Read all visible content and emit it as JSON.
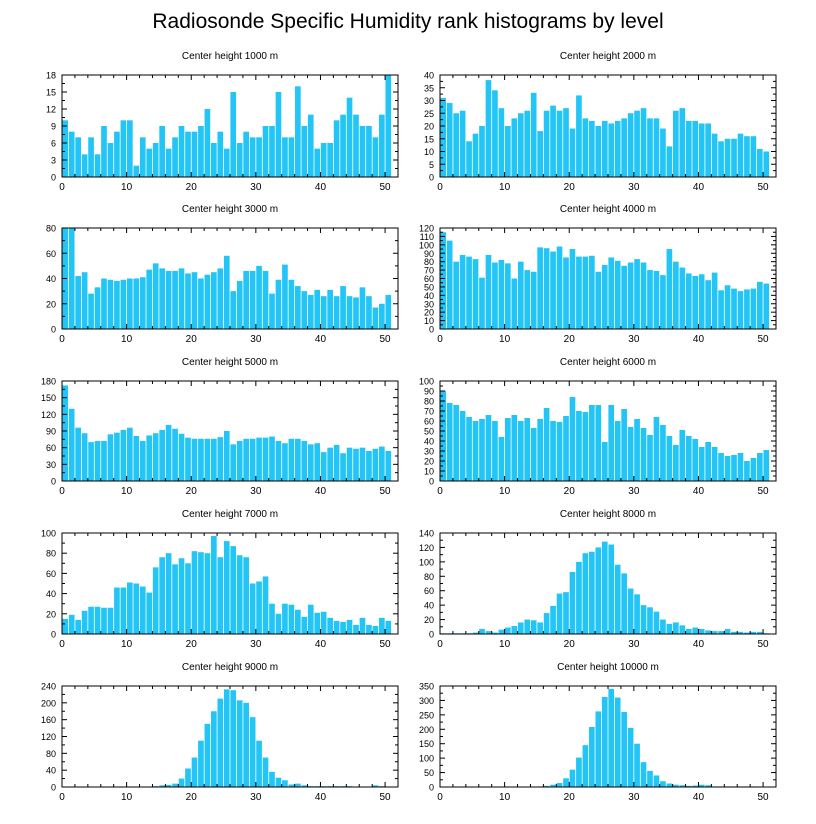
{
  "title": "Radiosonde Specific Humidity rank histograms by level",
  "colors": {
    "bar": "#22c5f5",
    "axis": "#000000"
  },
  "chart_data": [
    {
      "type": "bar",
      "title": "Center height 1000 m",
      "xlim": [
        0,
        52
      ],
      "xticks": [
        0,
        10,
        20,
        30,
        40,
        50
      ],
      "ylim": [
        0,
        18
      ],
      "yticks": [
        0,
        3,
        6,
        9,
        12,
        15,
        18
      ],
      "values": [
        10,
        8,
        7,
        4,
        7,
        4,
        9,
        6,
        8,
        10,
        10,
        2,
        7,
        5,
        6,
        9,
        5,
        7,
        9,
        8,
        8,
        9,
        12,
        6,
        8,
        5,
        15,
        6,
        8,
        7,
        7,
        9,
        9,
        15,
        7,
        7,
        16,
        9,
        11,
        5,
        6,
        6,
        10,
        11,
        14,
        11,
        9,
        9,
        7,
        11,
        18
      ]
    },
    {
      "type": "bar",
      "title": "Center height 2000 m",
      "xlim": [
        0,
        52
      ],
      "xticks": [
        0,
        10,
        20,
        30,
        40,
        50
      ],
      "ylim": [
        0,
        40
      ],
      "yticks": [
        0,
        5,
        10,
        15,
        20,
        25,
        30,
        35,
        40
      ],
      "values": [
        31,
        29,
        25,
        26,
        14,
        17,
        20,
        38,
        34,
        27,
        20,
        23,
        25,
        26,
        33,
        18,
        26,
        28,
        26,
        27,
        19,
        32,
        23,
        22,
        20,
        22,
        21,
        22,
        23,
        25,
        26,
        27,
        23,
        23,
        19,
        12,
        26,
        27,
        22,
        22,
        21,
        21,
        17,
        14,
        15,
        15,
        17,
        16,
        16,
        11,
        10
      ]
    },
    {
      "type": "bar",
      "title": "Center height 3000 m",
      "xlim": [
        0,
        52
      ],
      "xticks": [
        0,
        10,
        20,
        30,
        40,
        50
      ],
      "ylim": [
        0,
        80
      ],
      "yticks": [
        0,
        20,
        40,
        60,
        80
      ],
      "values": [
        80,
        80,
        42,
        45,
        28,
        33,
        40,
        39,
        38,
        39,
        40,
        40,
        41,
        47,
        52,
        48,
        46,
        46,
        48,
        44,
        45,
        40,
        43,
        45,
        48,
        58,
        30,
        38,
        46,
        46,
        50,
        46,
        28,
        39,
        51,
        39,
        34,
        30,
        27,
        31,
        26,
        31,
        26,
        34,
        26,
        25,
        33,
        26,
        17,
        20,
        27
      ]
    },
    {
      "type": "bar",
      "title": "Center height 4000 m",
      "xlim": [
        0,
        52
      ],
      "xticks": [
        0,
        10,
        20,
        30,
        40,
        50
      ],
      "ylim": [
        0,
        120
      ],
      "yticks": [
        0,
        10,
        20,
        30,
        40,
        50,
        60,
        70,
        80,
        90,
        100,
        110,
        120
      ],
      "values": [
        115,
        105,
        80,
        88,
        86,
        83,
        61,
        88,
        79,
        82,
        78,
        60,
        80,
        70,
        68,
        97,
        96,
        92,
        98,
        85,
        95,
        86,
        86,
        87,
        68,
        76,
        85,
        81,
        75,
        79,
        83,
        79,
        70,
        69,
        64,
        95,
        80,
        73,
        66,
        63,
        65,
        58,
        67,
        46,
        52,
        48,
        45,
        47,
        48,
        56,
        54
      ]
    },
    {
      "type": "bar",
      "title": "Center height 5000 m",
      "xlim": [
        0,
        52
      ],
      "xticks": [
        0,
        10,
        20,
        30,
        40,
        50
      ],
      "ylim": [
        0,
        180
      ],
      "yticks": [
        0,
        30,
        60,
        90,
        120,
        150,
        180
      ],
      "values": [
        172,
        130,
        96,
        86,
        70,
        72,
        72,
        84,
        87,
        92,
        96,
        81,
        72,
        82,
        86,
        92,
        101,
        94,
        85,
        78,
        76,
        76,
        76,
        76,
        79,
        90,
        66,
        72,
        76,
        76,
        78,
        78,
        80,
        72,
        68,
        76,
        76,
        72,
        66,
        68,
        52,
        60,
        65,
        50,
        60,
        58,
        60,
        54,
        58,
        62,
        54
      ]
    },
    {
      "type": "bar",
      "title": "Center height 6000 m",
      "xlim": [
        0,
        52
      ],
      "xticks": [
        0,
        10,
        20,
        30,
        40,
        50
      ],
      "ylim": [
        0,
        100
      ],
      "yticks": [
        0,
        10,
        20,
        30,
        40,
        50,
        60,
        70,
        80,
        90,
        100
      ],
      "values": [
        90,
        78,
        76,
        70,
        64,
        60,
        62,
        66,
        60,
        44,
        63,
        66,
        60,
        63,
        53,
        62,
        73,
        60,
        59,
        65,
        84,
        70,
        69,
        76,
        76,
        39,
        76,
        60,
        72,
        54,
        62,
        53,
        46,
        64,
        56,
        45,
        36,
        51,
        45,
        42,
        34,
        39,
        34,
        28,
        25,
        26,
        28,
        20,
        23,
        28,
        31
      ]
    },
    {
      "type": "bar",
      "title": "Center height 7000 m",
      "xlim": [
        0,
        52
      ],
      "xticks": [
        0,
        10,
        20,
        30,
        40,
        50
      ],
      "ylim": [
        0,
        100
      ],
      "yticks": [
        0,
        20,
        40,
        60,
        80,
        100
      ],
      "values": [
        15,
        19,
        14,
        23,
        27,
        27,
        26,
        26,
        46,
        46,
        51,
        50,
        47,
        41,
        66,
        76,
        80,
        69,
        75,
        70,
        82,
        81,
        80,
        97,
        76,
        92,
        87,
        78,
        76,
        50,
        52,
        57,
        30,
        20,
        30,
        29,
        24,
        17,
        29,
        21,
        22,
        16,
        13,
        12,
        14,
        9,
        16,
        9,
        8,
        16,
        13
      ]
    },
    {
      "type": "bar",
      "title": "Center height 8000 m",
      "xlim": [
        0,
        52
      ],
      "xticks": [
        0,
        10,
        20,
        30,
        40,
        50
      ],
      "ylim": [
        0,
        140
      ],
      "yticks": [
        0,
        20,
        40,
        60,
        80,
        100,
        120,
        140
      ],
      "values": [
        1,
        1,
        1,
        1,
        1,
        2,
        7,
        4,
        2,
        6,
        9,
        11,
        16,
        20,
        19,
        16,
        29,
        39,
        56,
        58,
        86,
        100,
        112,
        114,
        120,
        128,
        124,
        96,
        84,
        63,
        55,
        40,
        37,
        31,
        20,
        14,
        16,
        12,
        7,
        9,
        7,
        5,
        4,
        4,
        7,
        3,
        3,
        2,
        3,
        3,
        1
      ]
    },
    {
      "type": "bar",
      "title": "Center height 9000 m",
      "xlim": [
        0,
        52
      ],
      "xticks": [
        0,
        10,
        20,
        30,
        40,
        50
      ],
      "ylim": [
        0,
        240
      ],
      "yticks": [
        0,
        40,
        80,
        120,
        160,
        200,
        240
      ],
      "values": [
        0,
        0,
        0,
        0,
        0,
        0,
        0,
        0,
        0,
        0,
        0,
        0,
        0,
        0,
        2,
        4,
        5,
        8,
        20,
        44,
        70,
        110,
        150,
        180,
        210,
        232,
        230,
        206,
        200,
        166,
        110,
        70,
        36,
        22,
        16,
        6,
        8,
        4,
        2,
        2,
        2,
        2,
        2,
        2,
        2,
        1,
        1,
        1,
        4,
        2,
        1
      ]
    },
    {
      "type": "bar",
      "title": "Center height 10000 m",
      "xlim": [
        0,
        52
      ],
      "xticks": [
        0,
        10,
        20,
        30,
        40,
        50
      ],
      "ylim": [
        0,
        350
      ],
      "yticks": [
        0,
        50,
        100,
        150,
        200,
        250,
        300,
        350
      ],
      "values": [
        0,
        0,
        0,
        0,
        0,
        0,
        0,
        0,
        0,
        0,
        0,
        0,
        0,
        0,
        0,
        2,
        4,
        8,
        14,
        30,
        60,
        102,
        145,
        208,
        262,
        312,
        340,
        310,
        260,
        205,
        150,
        86,
        56,
        40,
        20,
        12,
        8,
        6,
        4,
        5,
        8,
        6,
        2,
        2,
        2,
        2,
        2,
        2,
        2,
        1,
        1
      ]
    }
  ]
}
